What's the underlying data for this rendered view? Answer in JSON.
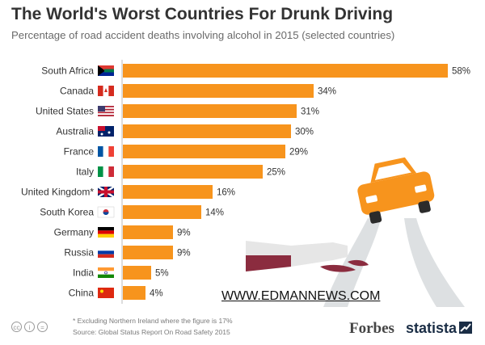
{
  "header": {
    "title": "The World's Worst Countries For Drunk Driving",
    "subtitle": "Percentage of road accident deaths involving alcohol in 2015 (selected countries)"
  },
  "chart_data": {
    "type": "bar",
    "orientation": "horizontal",
    "title": "The World's Worst Countries For Drunk Driving",
    "subtitle": "Percentage of road accident deaths involving alcohol in 2015 (selected countries)",
    "categories": [
      "South Africa",
      "Canada",
      "United States",
      "Australia",
      "France",
      "Italy",
      "United Kingdom*",
      "South Korea",
      "Germany",
      "Russia",
      "India",
      "China"
    ],
    "values": [
      58,
      34,
      31,
      30,
      29,
      25,
      16,
      14,
      9,
      9,
      5,
      4
    ],
    "value_labels": [
      "58%",
      "34%",
      "31%",
      "30%",
      "29%",
      "25%",
      "16%",
      "14%",
      "9%",
      "9%",
      "5%",
      "4%"
    ],
    "flags": [
      "za",
      "ca",
      "us",
      "au",
      "fr",
      "it",
      "gb",
      "kr",
      "de",
      "ru",
      "in",
      "cn"
    ],
    "unit": "%",
    "xlim": [
      0,
      58
    ],
    "grid": false,
    "bar_color": "#f7941d"
  },
  "watermark": "WWW.EDMANNEWS.COM",
  "footer": {
    "footnote": "* Excluding Northern Ireland where the figure is 17%",
    "source": "Source: Global Status Report On Road Safety 2015",
    "cc_icons": [
      "cc",
      "i",
      "="
    ],
    "forbes": "Forbes",
    "statista": "statista"
  },
  "colors": {
    "bar": "#f7941d",
    "title": "#333333",
    "subtitle": "#6a6a6a",
    "car": "#f7941d",
    "wine": "#8b2c3f"
  }
}
